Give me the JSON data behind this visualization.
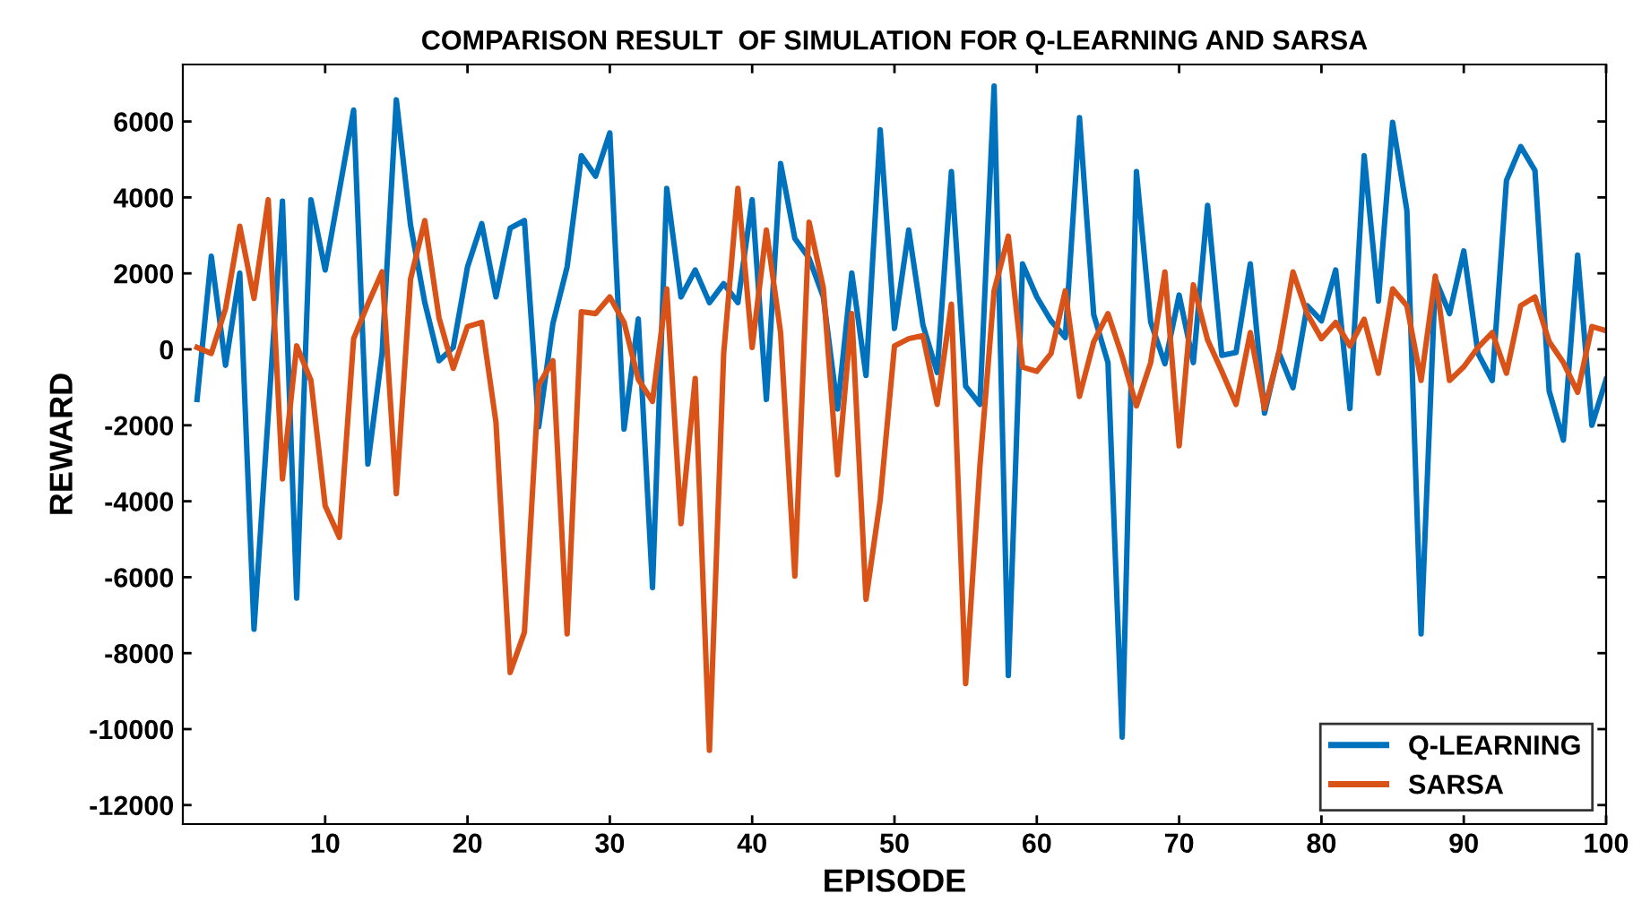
{
  "chart_data": {
    "type": "line",
    "title": "COMPARISON RESULT  OF SIMULATION FOR Q-LEARNING AND SARSA",
    "xlabel": "EPISODE",
    "ylabel": "REWARD",
    "x": [
      1,
      2,
      3,
      4,
      5,
      6,
      7,
      8,
      9,
      10,
      11,
      12,
      13,
      14,
      15,
      16,
      17,
      18,
      19,
      20,
      21,
      22,
      23,
      24,
      25,
      26,
      27,
      28,
      29,
      30,
      31,
      32,
      33,
      34,
      35,
      36,
      37,
      38,
      39,
      40,
      41,
      42,
      43,
      44,
      45,
      46,
      47,
      48,
      49,
      50,
      51,
      52,
      53,
      54,
      55,
      56,
      57,
      58,
      59,
      60,
      61,
      62,
      63,
      64,
      65,
      66,
      67,
      68,
      69,
      70,
      71,
      72,
      73,
      74,
      75,
      76,
      77,
      78,
      79,
      80,
      81,
      82,
      83,
      84,
      85,
      86,
      87,
      88,
      89,
      90,
      91,
      92,
      93,
      94,
      95,
      96,
      97,
      98,
      99,
      100
    ],
    "series": [
      {
        "name": "Q-LEARNING",
        "color": "#0072bd",
        "values": [
          -1320,
          2450,
          -420,
          2010,
          -7370,
          -1730,
          3900,
          -6550,
          3940,
          2090,
          4190,
          6300,
          -3020,
          -100,
          6570,
          3270,
          1230,
          -300,
          50,
          2170,
          3310,
          1380,
          3190,
          3390,
          -2040,
          680,
          2170,
          5100,
          4560,
          5700,
          -2100,
          800,
          -6270,
          4240,
          1380,
          2090,
          1230,
          1730,
          1230,
          3940,
          -1320,
          4890,
          2920,
          2400,
          1380,
          -1570,
          2010,
          -690,
          5780,
          550,
          3140,
          640,
          -610,
          4680,
          -970,
          -1450,
          6930,
          -8590,
          2250,
          1380,
          750,
          310,
          6100,
          910,
          -350,
          -10210,
          4680,
          720,
          -380,
          1430,
          -350,
          3790,
          -160,
          -80,
          2250,
          -1680,
          -80,
          -1010,
          1150,
          750,
          2090,
          -1560,
          5100,
          1270,
          5980,
          3660,
          -7490,
          1850,
          940,
          2590,
          -110,
          -820,
          4450,
          5340,
          4710,
          -1100,
          -2390,
          2480,
          -2000,
          -790
        ]
      },
      {
        "name": "SARSA",
        "color": "#d95319",
        "values": [
          50,
          -110,
          1070,
          3240,
          1340,
          3940,
          -3410,
          90,
          -820,
          -4120,
          -4950,
          280,
          1190,
          2040,
          -3800,
          1850,
          3390,
          830,
          -500,
          600,
          710,
          -1920,
          -8510,
          -7450,
          -940,
          -300,
          -7490,
          990,
          940,
          1380,
          710,
          -790,
          -1370,
          1590,
          -4590,
          -770,
          -10560,
          -110,
          4240,
          50,
          3140,
          440,
          -5970,
          3350,
          1620,
          -3300,
          940,
          -6580,
          -3960,
          90,
          280,
          360,
          -1450,
          1190,
          -8800,
          -3090,
          1540,
          2980,
          -470,
          -580,
          -110,
          1540,
          -1240,
          200,
          940,
          -190,
          -1490,
          -350,
          2040,
          -2540,
          1700,
          250,
          -580,
          -1450,
          440,
          -1560,
          -110,
          2040,
          940,
          280,
          710,
          90,
          790,
          -630,
          1590,
          1150,
          -820,
          1930,
          -820,
          -460,
          50,
          440,
          -630,
          1150,
          1380,
          200,
          -350,
          -1130,
          600,
          490
        ]
      }
    ],
    "xlim": [
      0,
      100
    ],
    "xticks": [
      10,
      20,
      30,
      40,
      50,
      60,
      70,
      80,
      90,
      100
    ],
    "ylim": [
      -12500,
      7500
    ],
    "yticks": [
      -12000,
      -10000,
      -8000,
      -6000,
      -4000,
      -2000,
      0,
      2000,
      4000,
      6000
    ],
    "grid": false,
    "legend": "bottom right",
    "marker": "none",
    "line_style": "solid"
  }
}
